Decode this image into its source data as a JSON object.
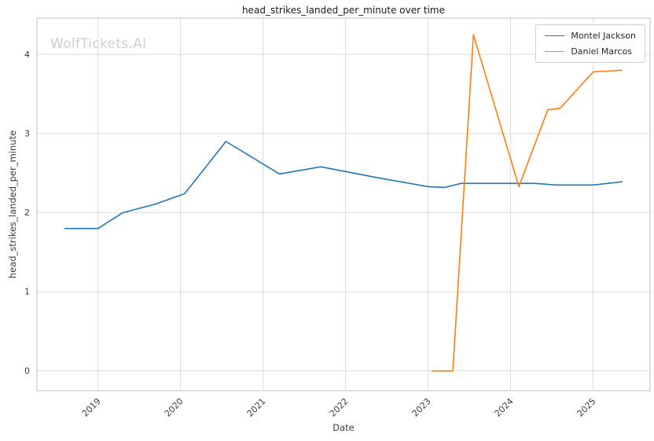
{
  "watermark": "WolfTickets.AI",
  "chart_data": {
    "type": "line",
    "title": "head_strikes_landed_per_minute over time",
    "xlabel": "Date",
    "ylabel": "head_strikes_landed_per_minute",
    "x_ticks": [
      2019,
      2020,
      2021,
      2022,
      2023,
      2024,
      2025
    ],
    "y_ticks": [
      0,
      1,
      2,
      3,
      4
    ],
    "xlim": [
      2018.26,
      2025.69
    ],
    "ylim": [
      -0.25,
      4.46
    ],
    "grid": true,
    "legend_position": "upper right",
    "series": [
      {
        "name": "Montel Jackson",
        "color": "#1f77b4",
        "x": [
          2018.6,
          2019.0,
          2019.3,
          2019.7,
          2020.05,
          2020.55,
          2021.2,
          2021.7,
          2022.4,
          2023.0,
          2023.2,
          2023.4,
          2024.0,
          2024.3,
          2024.55,
          2025.0,
          2025.35
        ],
        "y": [
          1.8,
          1.8,
          2.0,
          2.11,
          2.24,
          2.9,
          2.49,
          2.58,
          2.44,
          2.33,
          2.32,
          2.37,
          2.37,
          2.37,
          2.35,
          2.35,
          2.39
        ]
      },
      {
        "name": "Daniel Marcos",
        "color": "#ff7f0e",
        "x": [
          2023.05,
          2023.3,
          2023.55,
          2024.1,
          2024.45,
          2024.6,
          2025.0,
          2025.35
        ],
        "y": [
          0.0,
          0.0,
          4.25,
          2.33,
          3.3,
          3.32,
          3.78,
          3.8
        ]
      }
    ]
  }
}
